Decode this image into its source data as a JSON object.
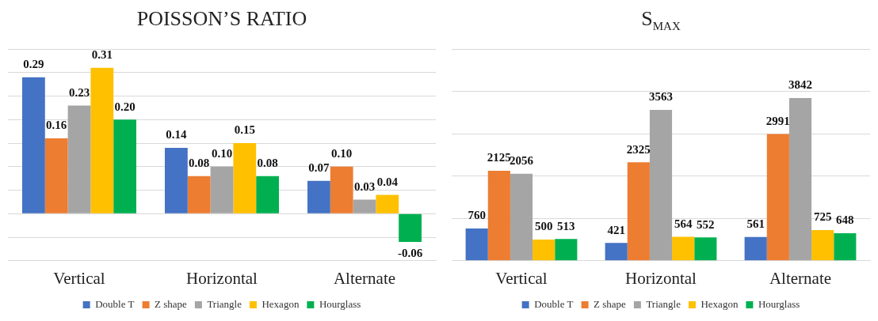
{
  "chart_data": [
    {
      "type": "bar",
      "title": "POISSON’S RATIO",
      "categories": [
        "Vertical",
        "Horizontal",
        "Alternate"
      ],
      "series": [
        {
          "name": "Double T",
          "color": "#4472c4",
          "values": [
            0.29,
            0.14,
            0.07
          ],
          "value_labels": [
            "0.29",
            "0.14",
            "0.07"
          ]
        },
        {
          "name": "Z shape",
          "color": "#ed7d31",
          "values": [
            0.16,
            0.08,
            0.1
          ],
          "value_labels": [
            "0.16",
            "0.08",
            "0.10"
          ]
        },
        {
          "name": "Triangle",
          "color": "#a5a5a5",
          "values": [
            0.23,
            0.1,
            0.03
          ],
          "value_labels": [
            "0.23",
            "0.10",
            "0.03"
          ]
        },
        {
          "name": "Hexagon",
          "color": "#ffc000",
          "values": [
            0.31,
            0.15,
            0.04
          ],
          "value_labels": [
            "0.31",
            "0.15",
            "0.04"
          ]
        },
        {
          "name": "Hourglass",
          "color": "#00b050",
          "values": [
            0.2,
            0.08,
            -0.06
          ],
          "value_labels": [
            "0.20",
            "0.08",
            "-0.06"
          ]
        }
      ],
      "ylim": [
        -0.1,
        0.35
      ],
      "yticks": [
        {
          "value": -0.1,
          "label": null
        },
        {
          "value": -0.05,
          "label": null
        },
        {
          "value": 0,
          "label": null
        },
        {
          "value": 0.05,
          "label": null
        },
        {
          "value": 0.1,
          "label": null
        },
        {
          "value": 0.15,
          "label": null
        },
        {
          "value": 0.2,
          "label": null
        },
        {
          "value": 0.25,
          "label": null
        },
        {
          "value": 0.3,
          "label": null
        },
        {
          "value": 0.35,
          "label": null
        }
      ],
      "grid": "y",
      "legend": "bottom",
      "tick_labels": "x"
    },
    {
      "type": "bar",
      "title": "S$_{MAX}$",
      "categories": [
        "Vertical",
        "Horizontal",
        "Alternate"
      ],
      "series": [
        {
          "name": "Double T",
          "color": "#4472c4",
          "values": [
            760,
            421,
            561
          ]
        },
        {
          "name": "Z shape",
          "color": "#ed7d31",
          "values": [
            2125,
            2325,
            2991
          ]
        },
        {
          "name": "Triangle",
          "color": "#a5a5a5",
          "values": [
            2056,
            3563,
            3842
          ]
        },
        {
          "name": "Hexagon",
          "color": "#ffc000",
          "values": [
            500,
            564,
            725
          ]
        },
        {
          "name": "Hourglass",
          "color": "#00b050",
          "values": [
            513,
            552,
            648
          ]
        }
      ],
      "ylim": [
        0,
        5000
      ],
      "yticks": [
        {
          "value": 0,
          "label": null
        },
        {
          "value": 1000,
          "label": null
        },
        {
          "value": 2000,
          "label": null
        },
        {
          "value": 3000,
          "label": null
        },
        {
          "value": 4000,
          "label": null
        },
        {
          "value": 5000,
          "label": null
        }
      ],
      "grid": "y",
      "legend": "bottom",
      "tick_labels": "x",
      "data_labels": true
    }
  ]
}
